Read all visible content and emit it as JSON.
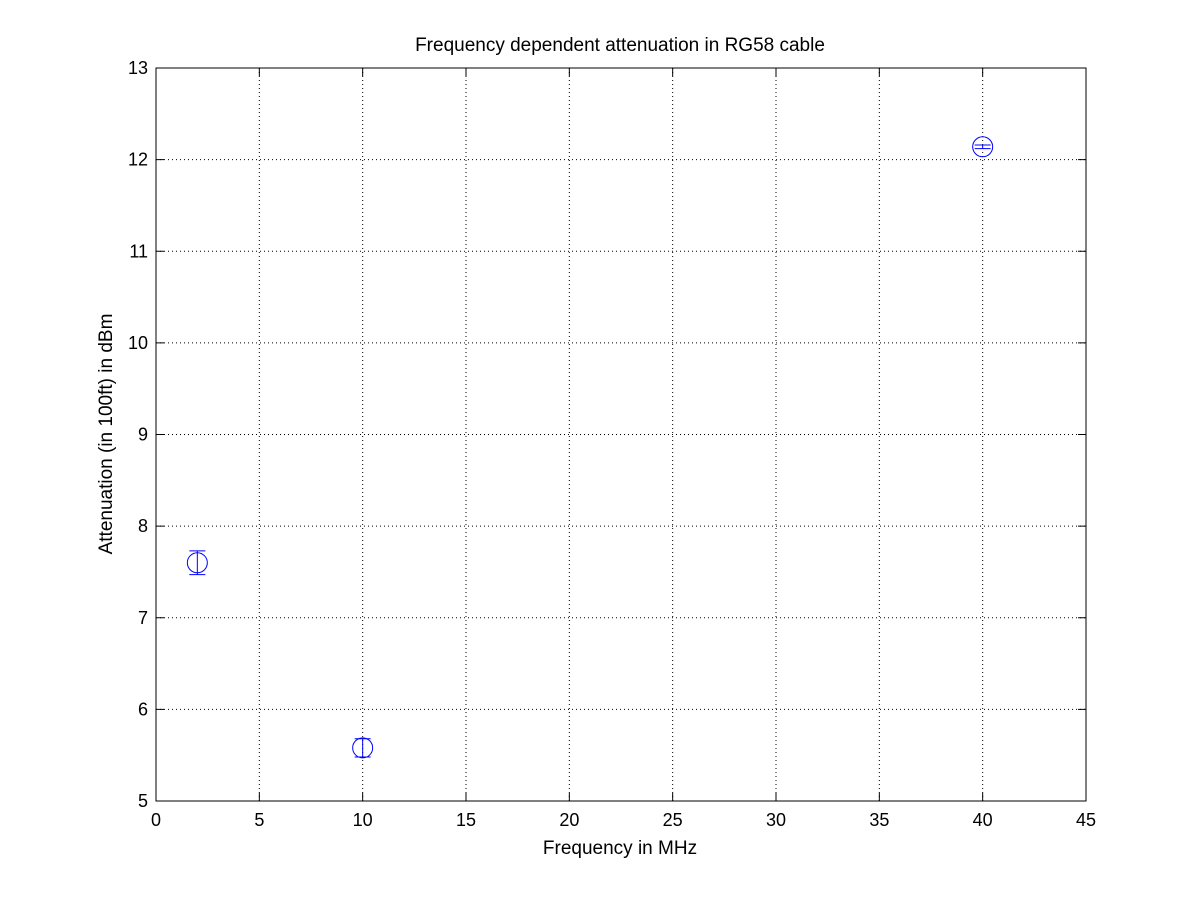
{
  "chart_data": {
    "type": "scatter",
    "title": "Frequency dependent attenuation in RG58 cable",
    "xlabel": "Frequency in MHz",
    "ylabel": "Attenuation (in 100ft) in dBm",
    "xlim": [
      0,
      45
    ],
    "ylim": [
      5,
      13
    ],
    "xticks": [
      0,
      5,
      10,
      15,
      20,
      25,
      30,
      35,
      40,
      45
    ],
    "yticks": [
      5,
      6,
      7,
      8,
      9,
      10,
      11,
      12,
      13
    ],
    "grid": true,
    "grid_style": "dotted",
    "marker": "circle-with-errorbar",
    "series_color": "#0000ff",
    "points": [
      {
        "x": 2,
        "y": 7.6,
        "err": 0.13
      },
      {
        "x": 10,
        "y": 5.58,
        "err": 0.1
      },
      {
        "x": 40,
        "y": 12.14,
        "err": 0.02
      }
    ]
  }
}
